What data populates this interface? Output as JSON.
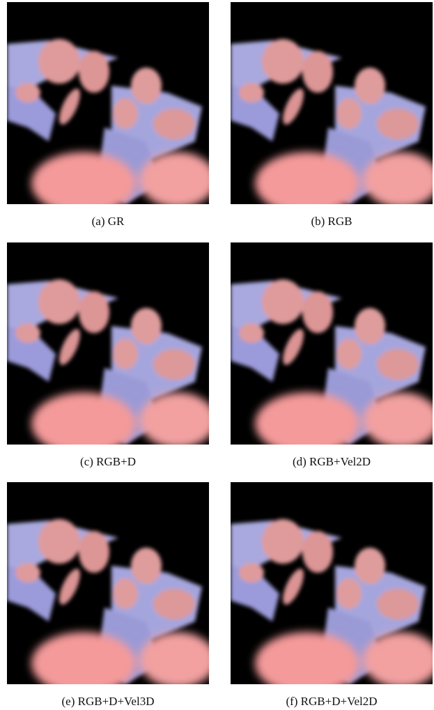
{
  "figure": {
    "panels": [
      {
        "caption": "(a) GR"
      },
      {
        "caption": "(b) RGB"
      },
      {
        "caption": "(c) RGB+D"
      },
      {
        "caption": "(d) RGB+Vel2D"
      },
      {
        "caption": "(e) RGB+D+Vel3D"
      },
      {
        "caption": "(f) RGB+D+Vel2D"
      }
    ]
  }
}
